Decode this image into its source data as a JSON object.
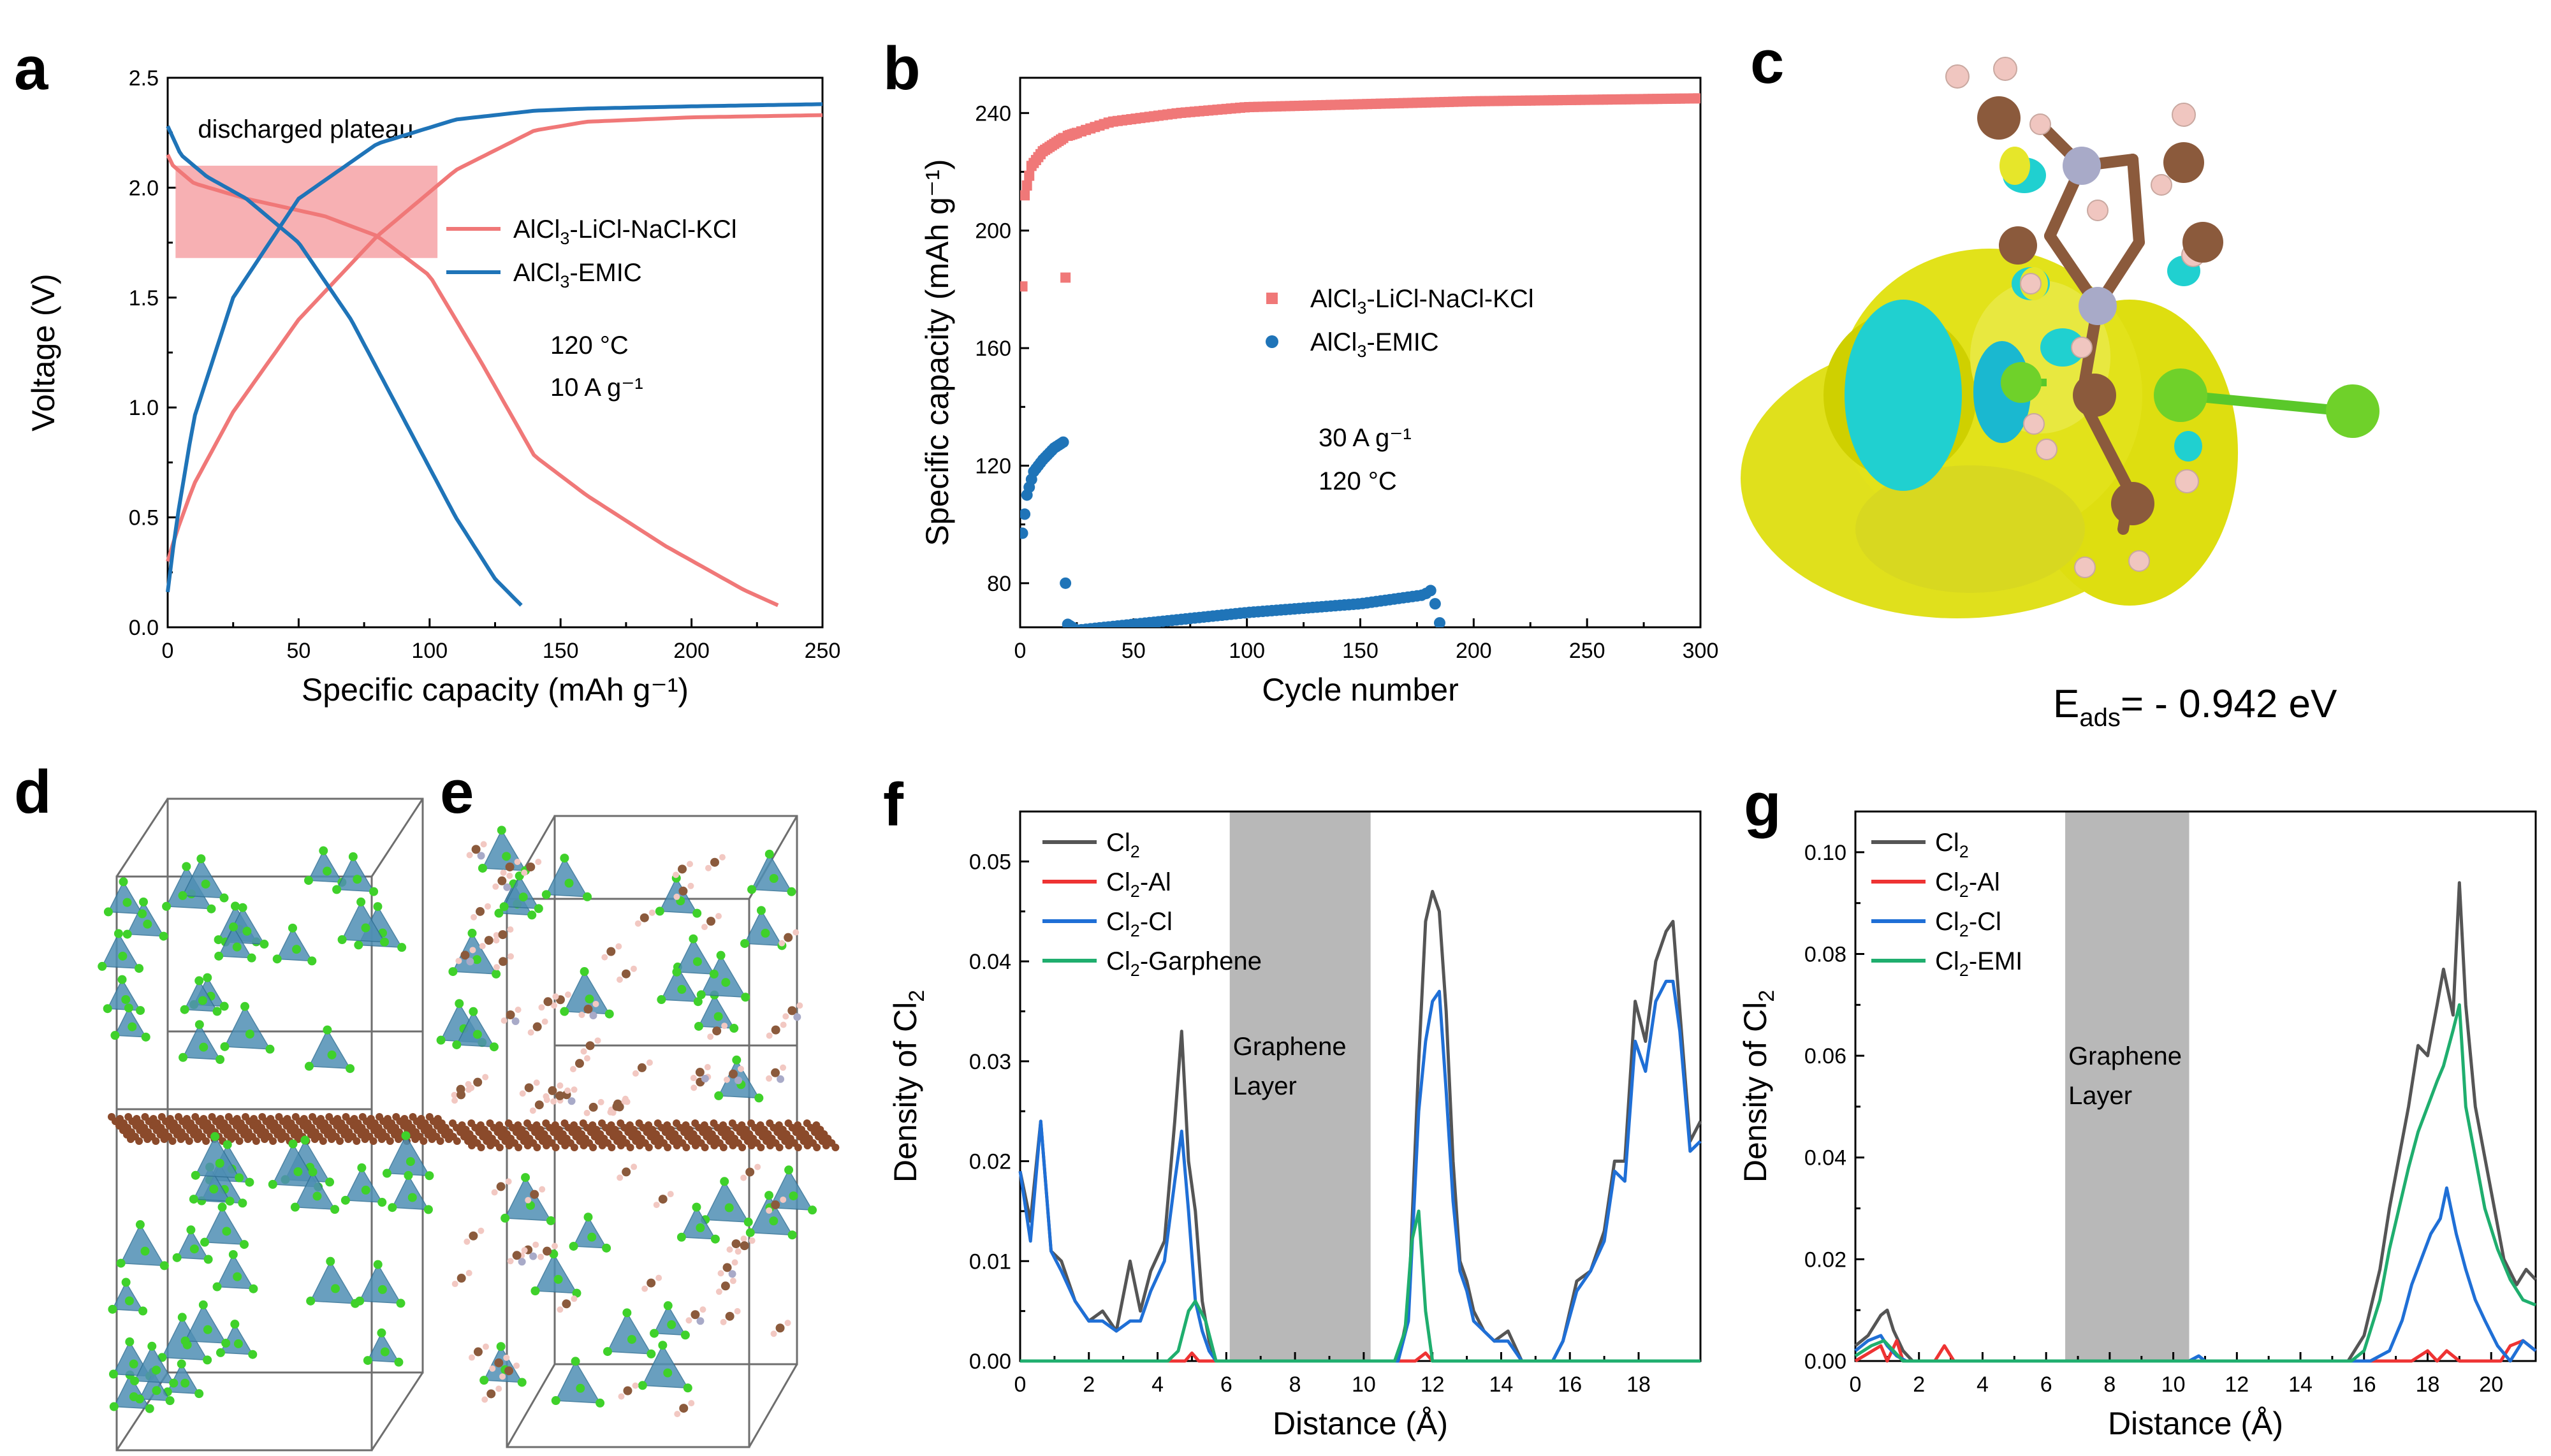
{
  "panels": {
    "a": {
      "label": "a"
    },
    "b": {
      "label": "b"
    },
    "c": {
      "label": "c",
      "caption_main": "E",
      "caption_sub": "ads",
      "caption_value": "= - 0.942 eV"
    },
    "d": {
      "label": "d"
    },
    "e": {
      "label": "e"
    },
    "f": {
      "label": "f",
      "layer_text": [
        "Graphene",
        "Layer"
      ]
    },
    "g": {
      "label": "g",
      "layer_text": [
        "Graphene",
        "Layer"
      ]
    }
  },
  "colors": {
    "salt": "#f07878",
    "emic": "#1f74b8",
    "cl2": "#555555",
    "cl2_al": "#ee3333",
    "cl2_cl": "#1f6fd6",
    "cl2_other": "#1fae6e",
    "plateau": "#f6a2a6",
    "layer": "#b8b8b8"
  },
  "chart_data": [
    {
      "id": "a",
      "type": "line",
      "title": "",
      "xlabel": "Specific capacity (mAh g⁻¹)",
      "ylabel": "Voltage (V)",
      "xlim": [
        0,
        250
      ],
      "ylim": [
        0,
        2.5
      ],
      "xticks": [
        "0",
        "50",
        "100",
        "150",
        "200",
        "250"
      ],
      "yticks": [
        "0.0",
        "0.5",
        "1.0",
        "1.5",
        "2.0",
        "2.5"
      ],
      "annotation": "discharged plateau",
      "plateau_region": {
        "x": [
          3,
          103
        ],
        "y": [
          1.68,
          2.1
        ]
      },
      "notes": [
        "120 °C",
        "10 A g⁻¹"
      ],
      "series": [
        {
          "name": "AlCl₃-LiCl-NaCl-KCl",
          "legend_main": "AlCl",
          "legend_sub": "3",
          "legend_rest": "-LiCl-NaCl-KCl",
          "color": "salt",
          "segments": [
            {
              "x": [
                0,
                2,
                10,
                30,
                60,
                80,
                100,
                120,
                140,
                160,
                190,
                220,
                233
              ],
              "y": [
                2.15,
                2.1,
                2.02,
                1.95,
                1.87,
                1.78,
                1.6,
                1.2,
                0.78,
                0.6,
                0.37,
                0.17,
                0.1
              ]
            },
            {
              "x": [
                0,
                3,
                10,
                25,
                50,
                80,
                110,
                140,
                160,
                200,
                250
              ],
              "y": [
                0.3,
                0.42,
                0.65,
                0.98,
                1.4,
                1.78,
                2.08,
                2.26,
                2.3,
                2.32,
                2.33
              ]
            }
          ]
        },
        {
          "name": "AlCl₃-EMIC",
          "legend_main": "AlCl",
          "legend_sub": "3",
          "legend_rest": "-EMIC",
          "color": "emic",
          "segments": [
            {
              "x": [
                0,
                5,
                15,
                30,
                50,
                70,
                90,
                110,
                125,
                135
              ],
              "y": [
                2.28,
                2.15,
                2.05,
                1.95,
                1.75,
                1.4,
                0.95,
                0.5,
                0.22,
                0.1
              ]
            },
            {
              "x": [
                0,
                3,
                10,
                25,
                50,
                80,
                110,
                140,
                160,
                200,
                250
              ],
              "y": [
                0.16,
                0.45,
                0.95,
                1.5,
                1.95,
                2.2,
                2.31,
                2.35,
                2.36,
                2.37,
                2.38
              ]
            }
          ]
        }
      ]
    },
    {
      "id": "b",
      "type": "scatter",
      "xlabel": "Cycle number",
      "ylabel": "Specific capacity (mAh g⁻¹)",
      "xlim": [
        0,
        300
      ],
      "ylim": [
        65,
        252
      ],
      "xticks": [
        "0",
        "50",
        "100",
        "150",
        "200",
        "250",
        "300"
      ],
      "yticks": [
        "80",
        "120",
        "160",
        "200",
        "240"
      ],
      "notes": [
        "30 A g⁻¹",
        "120 °C"
      ],
      "series": [
        {
          "name": "AlCl₃-LiCl-NaCl-KCl",
          "legend_main": "AlCl",
          "legend_sub": "3",
          "legend_rest": "-LiCl-NaCl-KCl",
          "color": "salt",
          "marker": "square",
          "anchors": {
            "x": [
              2,
              5,
              10,
              20,
              40,
              70,
              100,
              150,
              200,
              250,
              300
            ],
            "y": [
              212,
              222,
              227,
              232,
              237,
              240,
              242,
              243,
              244,
              244.5,
              245
            ]
          },
          "extra_points": [
            [
              1,
              181
            ],
            [
              2,
              212
            ],
            [
              20,
              184
            ]
          ]
        },
        {
          "name": "AlCl₃-EMIC",
          "legend_main": "AlCl",
          "legend_sub": "3",
          "legend_rest": "-EMIC",
          "color": "emic",
          "marker": "circle",
          "anchors": {
            "x": [
              1,
              3,
              6,
              10,
              15,
              19,
              20,
              21,
              25,
              50,
              100,
              150,
              178,
              182,
              184,
              186
            ],
            "y": [
              97,
              110,
              118,
              122,
              126,
              128,
              80,
              66,
              64,
              66,
              70,
              73,
              76,
              78,
              68,
              65
            ]
          }
        }
      ]
    },
    {
      "id": "f",
      "type": "line",
      "xlabel": "Distance (Å)",
      "ylabel": "Density of Cl₂",
      "xlim": [
        0,
        19.8
      ],
      "ylim": [
        0,
        0.055
      ],
      "xticks": [
        "0",
        "2",
        "4",
        "6",
        "8",
        "10",
        "12",
        "14",
        "16",
        "18"
      ],
      "yticks": [
        "0.00",
        "0.01",
        "0.02",
        "0.03",
        "0.04",
        "0.05"
      ],
      "shade": [
        6.1,
        10.2
      ],
      "series": [
        {
          "name": "Cl₂",
          "legend_main": "Cl",
          "legend_sub": "2",
          "legend_rest": "",
          "color": "cl2",
          "x": [
            0,
            0.3,
            0.6,
            0.9,
            1.2,
            1.6,
            2,
            2.4,
            2.8,
            3.2,
            3.5,
            3.8,
            4.2,
            4.5,
            4.7,
            4.9,
            5.1,
            5.3,
            5.5,
            5.7,
            5.9,
            11,
            11.3,
            11.6,
            11.8,
            12,
            12.2,
            12.4,
            12.6,
            12.8,
            13,
            13.2,
            13.5,
            13.8,
            14.2,
            14.6,
            15,
            15.5,
            15.8,
            16.2,
            16.6,
            17,
            17.3,
            17.6,
            17.9,
            18.2,
            18.5,
            18.8,
            19,
            19.2,
            19.5,
            19.8
          ],
          "y": [
            0.019,
            0.014,
            0.024,
            0.011,
            0.01,
            0.006,
            0.004,
            0.005,
            0.003,
            0.01,
            0.005,
            0.009,
            0.012,
            0.024,
            0.033,
            0.02,
            0.015,
            0.006,
            0.002,
            0,
            0,
            0,
            0.005,
            0.03,
            0.044,
            0.047,
            0.045,
            0.035,
            0.02,
            0.01,
            0.008,
            0.005,
            0.003,
            0.002,
            0.003,
            0,
            0,
            0,
            0.002,
            0.008,
            0.009,
            0.013,
            0.02,
            0.02,
            0.036,
            0.032,
            0.04,
            0.043,
            0.044,
            0.035,
            0.022,
            0.024
          ]
        },
        {
          "name": "Cl₂-Al",
          "legend_main": "Cl",
          "legend_sub": "2",
          "legend_rest": "-Al",
          "color": "cl2_al",
          "x": [
            0,
            4.8,
            5.0,
            5.2,
            11.5,
            11.8,
            12.0,
            19.8
          ],
          "y": [
            0,
            0,
            0.0008,
            0,
            0,
            0.0008,
            0,
            0
          ]
        },
        {
          "name": "Cl₂-Cl",
          "legend_main": "Cl",
          "legend_sub": "2",
          "legend_rest": "-Cl",
          "color": "cl2_cl",
          "x": [
            0,
            0.3,
            0.6,
            0.9,
            1.2,
            1.6,
            2,
            2.4,
            2.8,
            3.2,
            3.5,
            3.8,
            4.2,
            4.5,
            4.7,
            4.9,
            5.1,
            5.3,
            5.5,
            5.7,
            5.9,
            11,
            11.3,
            11.6,
            11.8,
            12,
            12.2,
            12.4,
            12.6,
            12.8,
            13,
            13.2,
            13.5,
            13.8,
            14.2,
            14.6,
            15,
            15.5,
            15.8,
            16.2,
            16.6,
            17,
            17.3,
            17.6,
            17.9,
            18.2,
            18.5,
            18.8,
            19,
            19.2,
            19.5,
            19.8
          ],
          "y": [
            0.019,
            0.012,
            0.024,
            0.011,
            0.009,
            0.006,
            0.004,
            0.004,
            0.003,
            0.004,
            0.004,
            0.007,
            0.01,
            0.018,
            0.023,
            0.015,
            0.006,
            0.003,
            0.001,
            0,
            0,
            0,
            0.004,
            0.025,
            0.032,
            0.036,
            0.037,
            0.027,
            0.016,
            0.009,
            0.007,
            0.004,
            0.003,
            0.002,
            0.002,
            0,
            0,
            0,
            0.002,
            0.007,
            0.009,
            0.012,
            0.019,
            0.018,
            0.032,
            0.029,
            0.036,
            0.038,
            0.038,
            0.033,
            0.021,
            0.022
          ]
        },
        {
          "name": "Cl₂-Garphene",
          "legend_main": "Cl",
          "legend_sub": "2",
          "legend_rest": "-Garphene",
          "color": "cl2_other",
          "x": [
            0,
            4.3,
            4.6,
            4.9,
            5.1,
            5.4,
            5.7,
            10.9,
            11.2,
            11.4,
            11.6,
            11.8,
            12.0,
            19.8
          ],
          "y": [
            0,
            0,
            0.001,
            0.005,
            0.006,
            0.004,
            0,
            0,
            0.003,
            0.012,
            0.015,
            0.005,
            0,
            0
          ]
        }
      ]
    },
    {
      "id": "g",
      "type": "line",
      "xlabel": "Distance (Å)",
      "ylabel": "Density of Cl₂",
      "xlim": [
        0,
        21.4
      ],
      "ylim": [
        0,
        0.108
      ],
      "xticks": [
        "0",
        "2",
        "4",
        "6",
        "8",
        "10",
        "12",
        "14",
        "16",
        "18",
        "20"
      ],
      "yticks": [
        "0.00",
        "0.02",
        "0.04",
        "0.06",
        "0.08",
        "0.10"
      ],
      "shade": [
        6.6,
        10.5
      ],
      "series": [
        {
          "name": "Cl₂",
          "legend_main": "Cl",
          "legend_sub": "2",
          "legend_rest": "",
          "color": "cl2",
          "x": [
            0,
            0.4,
            0.8,
            1.0,
            1.2,
            1.5,
            1.8,
            15.5,
            16,
            16.5,
            16.8,
            17.1,
            17.4,
            17.7,
            18,
            18.3,
            18.5,
            18.8,
            19,
            19.2,
            19.5,
            19.8,
            20.1,
            20.4,
            20.8,
            21.1,
            21.4
          ],
          "y": [
            0.003,
            0.005,
            0.009,
            0.01,
            0.006,
            0.002,
            0,
            0,
            0.005,
            0.018,
            0.03,
            0.04,
            0.05,
            0.062,
            0.06,
            0.07,
            0.077,
            0.068,
            0.094,
            0.07,
            0.05,
            0.04,
            0.03,
            0.02,
            0.015,
            0.018,
            0.016
          ]
        },
        {
          "name": "Cl₂-Al",
          "legend_main": "Cl",
          "legend_sub": "2",
          "legend_rest": "-Al",
          "color": "cl2_al",
          "x": [
            0,
            0.8,
            1.0,
            1.3,
            1.5,
            2.5,
            2.8,
            3.1,
            17.5,
            18.0,
            18.3,
            18.6,
            19.0,
            20.3,
            20.6,
            21.0,
            21.4
          ],
          "y": [
            0,
            0.003,
            0,
            0.004,
            0,
            0,
            0.003,
            0,
            0,
            0.002,
            0,
            0.002,
            0,
            0,
            0.003,
            0.004,
            0.002
          ]
        },
        {
          "name": "Cl₂-Cl",
          "legend_main": "Cl",
          "legend_sub": "2",
          "legend_rest": "-Cl",
          "color": "cl2_cl",
          "x": [
            0,
            0.4,
            0.8,
            1.0,
            1.3,
            1.6,
            10.5,
            10.8,
            11.0,
            16.2,
            16.8,
            17.2,
            17.5,
            17.8,
            18.1,
            18.4,
            18.6,
            18.9,
            19.2,
            19.5,
            19.8,
            20.2,
            20.6,
            21.0,
            21.4
          ],
          "y": [
            0.002,
            0.004,
            0.005,
            0.003,
            0.001,
            0,
            0,
            0.001,
            0,
            0,
            0.002,
            0.008,
            0.015,
            0.02,
            0.025,
            0.028,
            0.034,
            0.025,
            0.018,
            0.012,
            0.008,
            0.003,
            0.0,
            0.004,
            0.002
          ]
        },
        {
          "name": "Cl₂-EMI",
          "legend_main": "Cl",
          "legend_sub": "2",
          "legend_rest": "-EMI",
          "color": "cl2_other",
          "x": [
            0,
            0.5,
            0.9,
            1.2,
            1.5,
            15.6,
            16,
            16.5,
            16.8,
            17.1,
            17.4,
            17.7,
            18,
            18.3,
            18.5,
            18.8,
            19,
            19.2,
            19.5,
            19.8,
            20.2,
            20.6,
            21.0,
            21.4
          ],
          "y": [
            0.001,
            0.003,
            0.004,
            0.002,
            0,
            0,
            0.002,
            0.012,
            0.022,
            0.03,
            0.038,
            0.045,
            0.05,
            0.055,
            0.058,
            0.065,
            0.07,
            0.05,
            0.04,
            0.03,
            0.022,
            0.016,
            0.012,
            0.011
          ]
        }
      ]
    }
  ]
}
